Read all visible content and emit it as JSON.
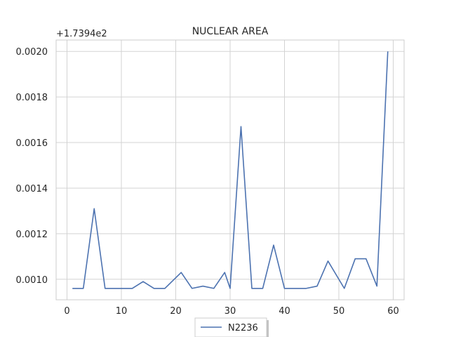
{
  "chart_data": {
    "type": "line",
    "title": "NUCLEAR AREA",
    "xlabel": "",
    "ylabel": "",
    "y_offset_label": "+1.7394e2",
    "xlim": [
      -2,
      62
    ],
    "ylim": [
      0.00091,
      0.00205
    ],
    "xticks": [
      0,
      10,
      20,
      30,
      40,
      50,
      60
    ],
    "xtick_labels": [
      "0",
      "10",
      "20",
      "30",
      "40",
      "50",
      "60"
    ],
    "yticks": [
      0.001,
      0.0012,
      0.0014,
      0.0016,
      0.0018,
      0.002
    ],
    "ytick_labels": [
      "0.0010",
      "0.0012",
      "0.0014",
      "0.0016",
      "0.0018",
      "0.0020"
    ],
    "grid": true,
    "legend_position": "below-center",
    "series": [
      {
        "name": "N2236",
        "color": "#4c72b0",
        "x": [
          1,
          3,
          5,
          7,
          9,
          12,
          14,
          16,
          18,
          21,
          23,
          25,
          27,
          29,
          30,
          32,
          34,
          36,
          38,
          40,
          42,
          44,
          46,
          48,
          51,
          53,
          55,
          57,
          59
        ],
        "y": [
          0.00096,
          0.00096,
          0.00131,
          0.00096,
          0.00096,
          0.00096,
          0.00099,
          0.00096,
          0.00096,
          0.00103,
          0.00096,
          0.00097,
          0.00096,
          0.00103,
          0.00096,
          0.00167,
          0.00096,
          0.00096,
          0.00115,
          0.00096,
          0.00096,
          0.00096,
          0.00097,
          0.00108,
          0.00096,
          0.00109,
          0.00109,
          0.00097,
          0.002
        ]
      }
    ]
  }
}
